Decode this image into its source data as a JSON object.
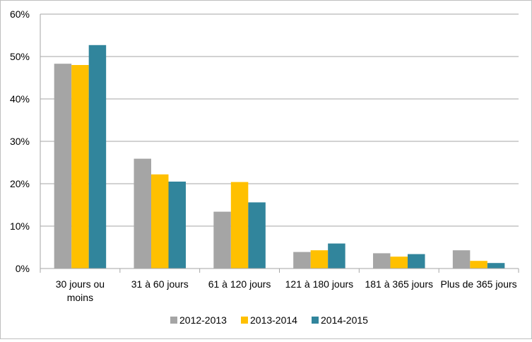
{
  "chart_data": {
    "type": "bar",
    "categories": [
      [
        "30 jours ou",
        "moins"
      ],
      [
        "31 à 60 jours"
      ],
      [
        "61 à 120 jours"
      ],
      [
        "121 à 180 jours"
      ],
      [
        "181 à 365 jours"
      ],
      [
        "Plus de 365 jours"
      ]
    ],
    "series": [
      {
        "name": "2012-2013",
        "color": "#a5a5a5",
        "values": [
          48.3,
          25.9,
          13.4,
          3.9,
          3.6,
          4.3
        ]
      },
      {
        "name": "2013-2014",
        "color": "#ffc000",
        "values": [
          48.0,
          22.2,
          20.4,
          4.3,
          2.8,
          1.8
        ]
      },
      {
        "name": "2014-2015",
        "color": "#31859c",
        "values": [
          52.7,
          20.5,
          15.6,
          5.9,
          3.4,
          1.3
        ]
      }
    ],
    "y_ticks": [
      "0%",
      "10%",
      "20%",
      "30%",
      "40%",
      "50%",
      "60%"
    ],
    "ylim": [
      0,
      60
    ],
    "grid": true,
    "legend_position": "bottom"
  }
}
